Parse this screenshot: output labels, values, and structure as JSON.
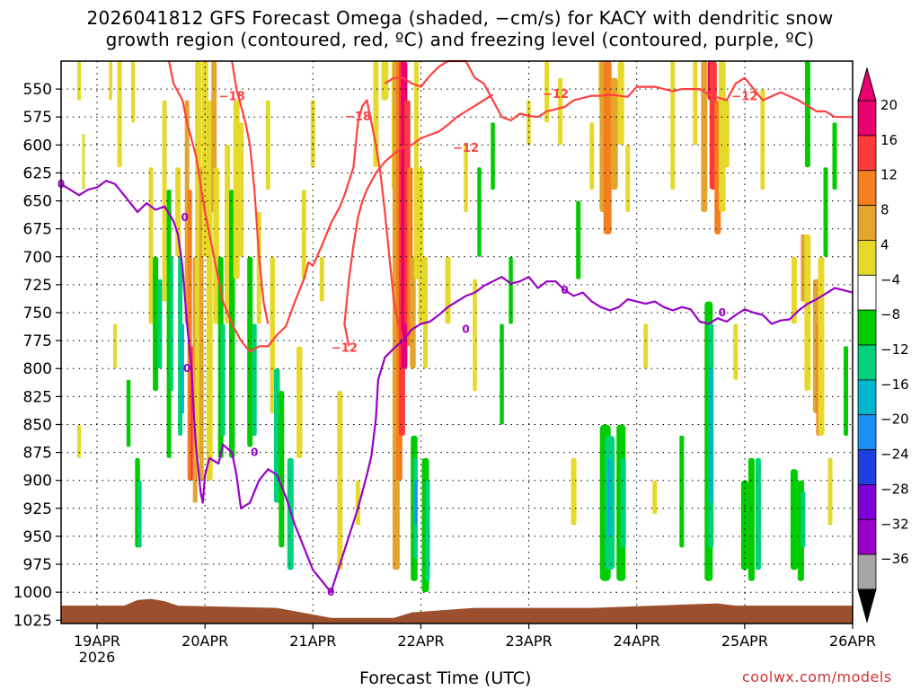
{
  "title": {
    "line1": "2026041812 GFS Forecast Omega (shaded, −cm/s) for KACY with dendritic snow",
    "line2": "growth region (contoured, red, ºC) and freezing level (contoured, purple, ºC)"
  },
  "credit": "coolwx.com/models",
  "chart_data": {
    "type": "heatmap",
    "xlabel": "Forecast Time (UTC)",
    "ylabel": "",
    "x_ticks": [
      {
        "label": "19APR",
        "t": 0
      },
      {
        "label": "20APR",
        "t": 24
      },
      {
        "label": "21APR",
        "t": 48
      },
      {
        "label": "22APR",
        "t": 72
      },
      {
        "label": "23APR",
        "t": 96
      },
      {
        "label": "24APR",
        "t": 120
      },
      {
        "label": "25APR",
        "t": 144
      },
      {
        "label": "26APR",
        "t": 168
      }
    ],
    "x_sublabel": "2026",
    "x_range_hours": [
      -8,
      168
    ],
    "y_ticks": [
      550,
      575,
      600,
      625,
      650,
      675,
      700,
      725,
      750,
      775,
      800,
      825,
      850,
      875,
      900,
      925,
      950,
      975,
      1000,
      1025
    ],
    "y_range_hpa": [
      525,
      1028
    ],
    "colorbar": {
      "labels": [
        "20",
        "16",
        "12",
        "8",
        "4",
        "−4",
        "−8",
        "−12",
        "−16",
        "−20",
        "−24",
        "−28",
        "−32",
        "−36"
      ],
      "colors": [
        "#e8006e",
        "#ff3a3a",
        "#f47f1f",
        "#e3a52d",
        "#e6d92b",
        "#ffffff",
        "#00cc00",
        "#00d27c",
        "#00b6cc",
        "#1b8ff2",
        "#1f3fe0",
        "#7d00d6",
        "#9b00c8",
        "#a6a6a6"
      ],
      "top_color": "#e8006e",
      "bottom_color": "#000000"
    },
    "freezing_level": {
      "color": "#9a00c8",
      "label": "0",
      "points": [
        [
          -8,
          635
        ],
        [
          -6,
          640
        ],
        [
          -4,
          645
        ],
        [
          -2,
          640
        ],
        [
          0,
          638
        ],
        [
          2,
          632
        ],
        [
          4,
          635
        ],
        [
          6,
          645
        ],
        [
          8,
          655
        ],
        [
          9,
          660
        ],
        [
          11,
          652
        ],
        [
          13,
          658
        ],
        [
          15,
          655
        ],
        [
          17,
          668
        ],
        [
          18,
          680
        ],
        [
          19,
          710
        ],
        [
          20,
          760
        ],
        [
          21,
          800
        ],
        [
          21.5,
          840
        ],
        [
          22,
          870
        ],
        [
          23,
          910
        ],
        [
          23.5,
          920
        ],
        [
          24,
          895
        ],
        [
          25,
          880
        ],
        [
          27,
          885
        ],
        [
          28,
          868
        ],
        [
          30,
          875
        ],
        [
          31,
          895
        ],
        [
          32,
          925
        ],
        [
          34,
          920
        ],
        [
          36,
          900
        ],
        [
          38,
          890
        ],
        [
          40,
          895
        ],
        [
          42,
          915
        ],
        [
          44,
          940
        ],
        [
          46,
          960
        ],
        [
          48,
          980
        ],
        [
          50,
          990
        ],
        [
          52,
          1000
        ],
        [
          54,
          975
        ],
        [
          56,
          950
        ],
        [
          58,
          925
        ],
        [
          60,
          895
        ],
        [
          61,
          878
        ],
        [
          62,
          845
        ],
        [
          62.5,
          810
        ],
        [
          64,
          790
        ],
        [
          66,
          782
        ],
        [
          68,
          775
        ],
        [
          70,
          765
        ],
        [
          72,
          760
        ],
        [
          74,
          758
        ],
        [
          76,
          752
        ],
        [
          78,
          745
        ],
        [
          80,
          740
        ],
        [
          82,
          735
        ],
        [
          84,
          732
        ],
        [
          86,
          726
        ],
        [
          88,
          722
        ],
        [
          90,
          718
        ],
        [
          92,
          724
        ],
        [
          94,
          722
        ],
        [
          96,
          718
        ],
        [
          98,
          728
        ],
        [
          100,
          722
        ],
        [
          102,
          722
        ],
        [
          104,
          730
        ],
        [
          106,
          735
        ],
        [
          108,
          732
        ],
        [
          110,
          740
        ],
        [
          112,
          745
        ],
        [
          114,
          748
        ],
        [
          116,
          745
        ],
        [
          118,
          738
        ],
        [
          120,
          740
        ],
        [
          122,
          742
        ],
        [
          124,
          740
        ],
        [
          126,
          745
        ],
        [
          128,
          748
        ],
        [
          130,
          745
        ],
        [
          132,
          747
        ],
        [
          134,
          758
        ],
        [
          136,
          760
        ],
        [
          138,
          755
        ],
        [
          140,
          758
        ],
        [
          142,
          752
        ],
        [
          144,
          747
        ],
        [
          146,
          750
        ],
        [
          148,
          752
        ],
        [
          150,
          760
        ],
        [
          152,
          757
        ],
        [
          154,
          756
        ],
        [
          156,
          748
        ],
        [
          158,
          742
        ],
        [
          160,
          738
        ],
        [
          162,
          733
        ],
        [
          164,
          728
        ],
        [
          166,
          730
        ],
        [
          168,
          732
        ]
      ],
      "label_at": [
        [
          -8,
          635
        ],
        [
          19.5,
          665
        ],
        [
          20,
          800
        ],
        [
          35,
          875
        ],
        [
          52,
          1000
        ],
        [
          82,
          765
        ],
        [
          104,
          730
        ],
        [
          139,
          750
        ]
      ]
    },
    "dgz_contours": {
      "color": "#ff4040",
      "labels": [
        {
          "text": "−18",
          "t": 30,
          "p": 560
        },
        {
          "text": "−18",
          "t": 58,
          "p": 578
        },
        {
          "text": "−12",
          "t": 55,
          "p": 785
        },
        {
          "text": "−12",
          "t": 82,
          "p": 606
        },
        {
          "text": "−12",
          "t": 102,
          "p": 558
        },
        {
          "text": "−12",
          "t": 144,
          "p": 560
        }
      ]
    }
  }
}
